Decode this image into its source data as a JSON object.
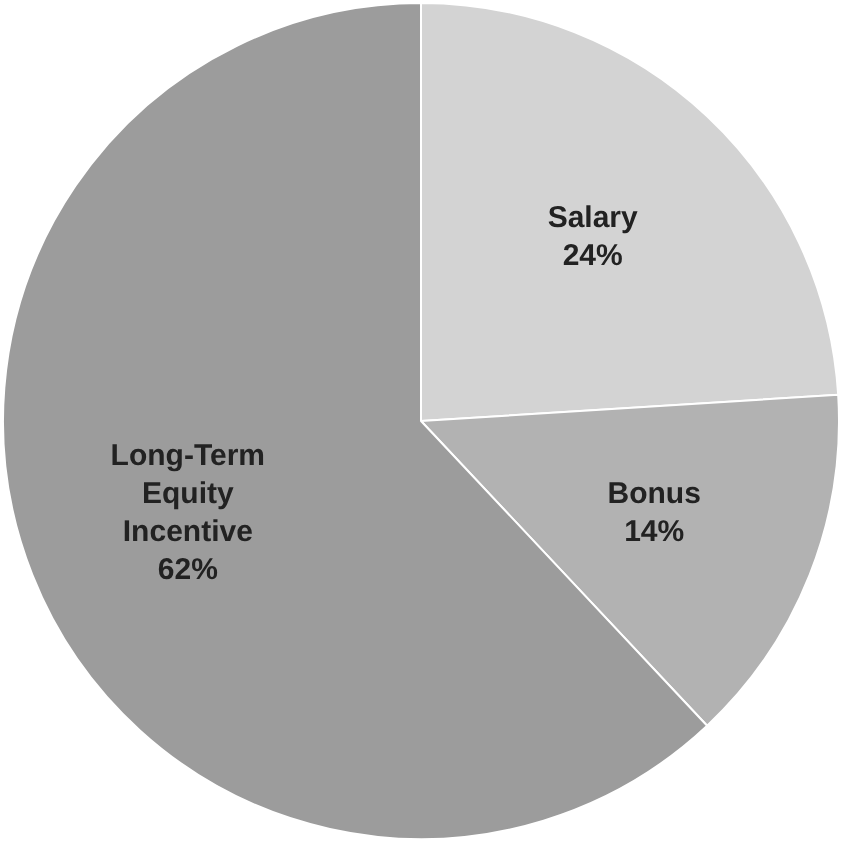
{
  "chart_data": {
    "type": "pie",
    "categories": [
      "Salary",
      "Bonus",
      "Long-Term Equity Incentive"
    ],
    "values": [
      24,
      14,
      62
    ],
    "colors": [
      "#d3d3d3",
      "#b2b2b2",
      "#9c9c9c"
    ],
    "value_labels": [
      "24%",
      "14%",
      "62%"
    ],
    "legend": false
  }
}
